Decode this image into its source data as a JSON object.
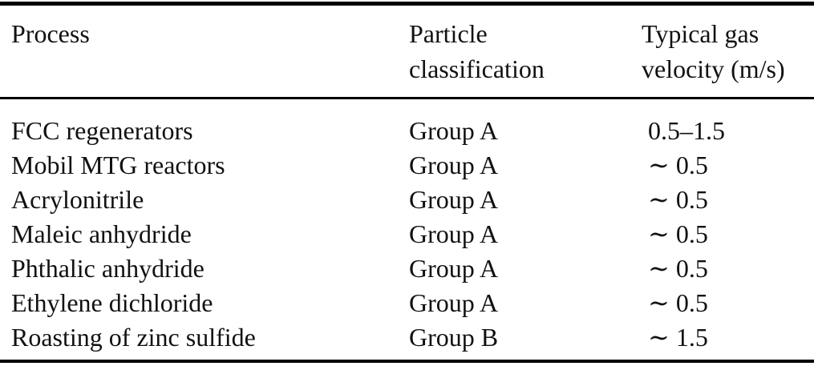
{
  "table": {
    "columns": [
      {
        "label": "Process",
        "lines": [
          "Process"
        ]
      },
      {
        "label": "Particle classification",
        "lines": [
          "Particle",
          "classification"
        ]
      },
      {
        "label": "Typical gas velocity (m/s)",
        "lines": [
          "Typical gas",
          "velocity (m/s)"
        ]
      }
    ],
    "rows": [
      {
        "process": "FCC regenerators",
        "particle_classification": "Group A",
        "typical_gas_velocity": "0.5–1.5"
      },
      {
        "process": "Mobil MTG reactors",
        "particle_classification": "Group A",
        "typical_gas_velocity": "∼ 0.5"
      },
      {
        "process": "Acrylonitrile",
        "particle_classification": "Group A",
        "typical_gas_velocity": "∼ 0.5"
      },
      {
        "process": "Maleic anhydride",
        "particle_classification": "Group A",
        "typical_gas_velocity": "∼ 0.5"
      },
      {
        "process": "Phthalic anhydride",
        "particle_classification": "Group A",
        "typical_gas_velocity": "∼ 0.5"
      },
      {
        "process": "Ethylene dichloride",
        "particle_classification": "Group A",
        "typical_gas_velocity": "∼ 0.5"
      },
      {
        "process": "Roasting of zinc sulfide",
        "particle_classification": "Group B",
        "typical_gas_velocity": "∼ 1.5"
      }
    ],
    "colors": {
      "text": "#111111",
      "rule": "#000000",
      "background": "#ffffff"
    }
  }
}
